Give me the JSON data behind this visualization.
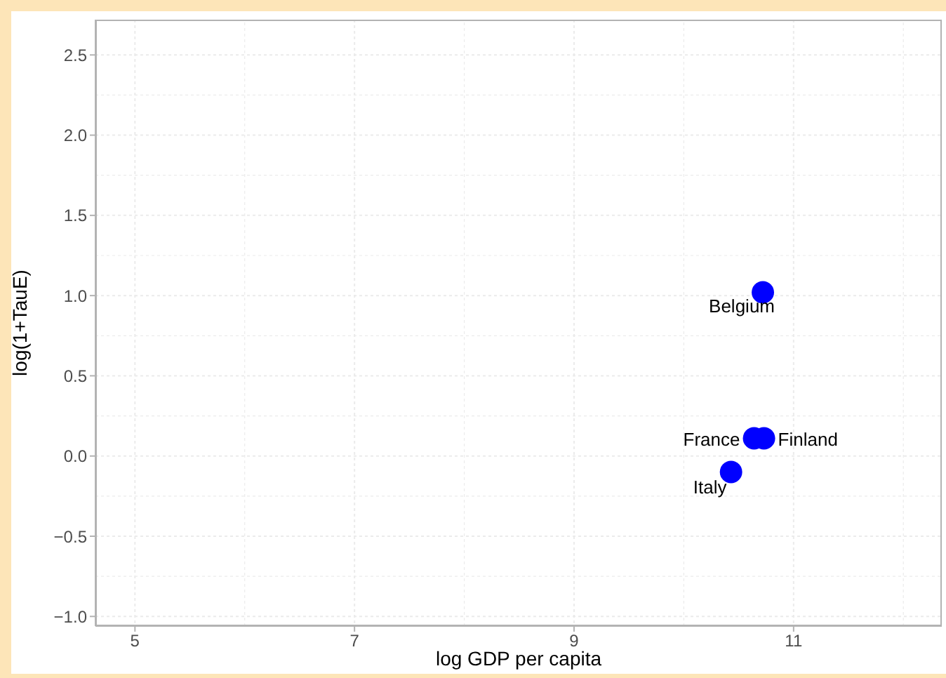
{
  "chart_data": {
    "type": "scatter",
    "xlabel": "log GDP per capita",
    "ylabel": "log(1+TauE)",
    "x": [
      10.72,
      10.64,
      10.73,
      10.43
    ],
    "values": [
      1.02,
      0.11,
      0.11,
      -0.1
    ],
    "color": "#0000ff",
    "annotations": [
      {
        "text": "Belgium",
        "x": 10.72,
        "y": 1.02
      },
      {
        "text": "France",
        "x": 10.64,
        "y": 0.11
      },
      {
        "text": "Finland",
        "x": 10.73,
        "y": 0.11
      },
      {
        "text": "Italy",
        "x": 10.43,
        "y": -0.1
      }
    ],
    "xlim": [
      4.64,
      12.35
    ],
    "xticks": [
      5,
      7,
      9,
      11
    ],
    "ylim": [
      -1.06,
      2.72
    ],
    "yticks": [
      {
        "value": -1,
        "label": "−1.0"
      },
      {
        "value": -0.5,
        "label": "−0.5"
      },
      {
        "value": 0,
        "label": "0.0"
      },
      {
        "value": 0.5,
        "label": "0.5"
      },
      {
        "value": 1,
        "label": "1.0"
      },
      {
        "value": 1.5,
        "label": "1.5"
      },
      {
        "value": 2,
        "label": "2.0"
      },
      {
        "value": 2.5,
        "label": "2.5"
      }
    ],
    "grid": true,
    "marker": "circle"
  }
}
